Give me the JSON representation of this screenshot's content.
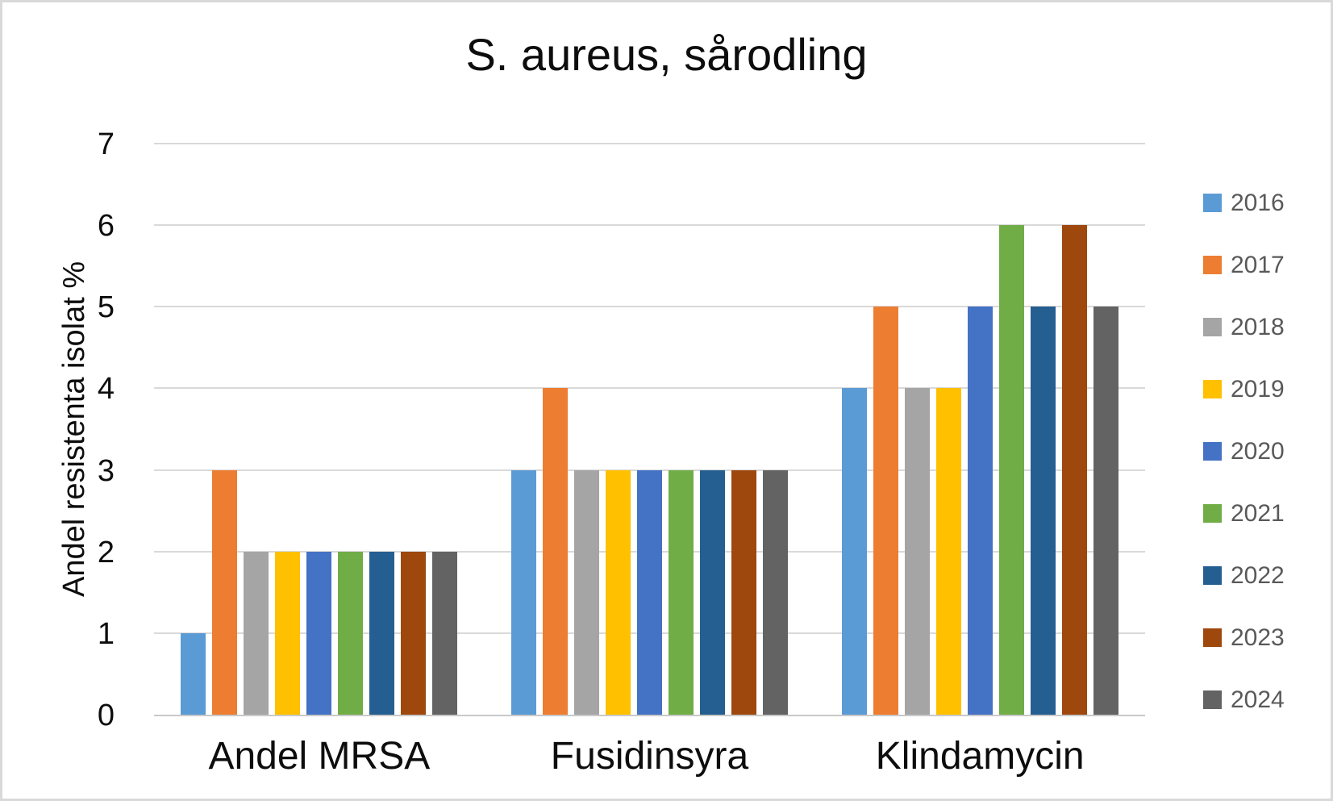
{
  "chart_data": {
    "type": "bar",
    "title": "S. aureus, sårodling",
    "ylabel": "Andel resistenta isolat %",
    "xlabel": "",
    "categories": [
      "Andel MRSA",
      "Fusidinsyra",
      "Klindamycin"
    ],
    "series": [
      {
        "name": "2016",
        "color": "#5B9BD5",
        "values": [
          1,
          3,
          4
        ]
      },
      {
        "name": "2017",
        "color": "#ED7D31",
        "values": [
          3,
          4,
          5
        ]
      },
      {
        "name": "2018",
        "color": "#A5A5A5",
        "values": [
          2,
          3,
          4
        ]
      },
      {
        "name": "2019",
        "color": "#FFC000",
        "values": [
          2,
          3,
          4
        ]
      },
      {
        "name": "2020",
        "color": "#4472C4",
        "values": [
          2,
          3,
          5
        ]
      },
      {
        "name": "2021",
        "color": "#70AD47",
        "values": [
          2,
          3,
          6
        ]
      },
      {
        "name": "2022",
        "color": "#255E91",
        "values": [
          2,
          3,
          5
        ]
      },
      {
        "name": "2023",
        "color": "#9E480E",
        "values": [
          2,
          3,
          6
        ]
      },
      {
        "name": "2024",
        "color": "#636363",
        "values": [
          2,
          3,
          5
        ]
      }
    ],
    "ylim": [
      0,
      7
    ],
    "yticks": [
      0,
      1,
      2,
      3,
      4,
      5,
      6,
      7
    ],
    "grid": true,
    "legend_position": "right",
    "style": {
      "grid_color": "#D9D9D9",
      "axis_color": "#C9C9C9",
      "frame_color": "#D9D9D9",
      "text_color": "#0D0D0D",
      "legend_text_color": "#595959"
    }
  }
}
